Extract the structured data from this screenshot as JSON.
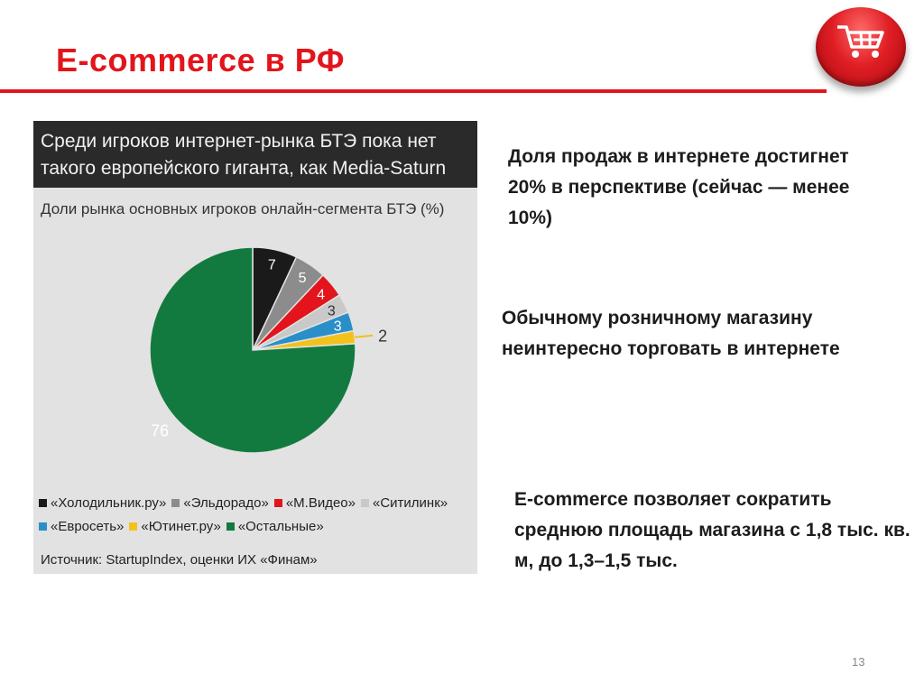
{
  "slide": {
    "title": "E-commerce в РФ",
    "page_number": "13",
    "accent_color": "#e3141b"
  },
  "cart_icon": {
    "name": "shopping-cart-icon"
  },
  "chart_data": {
    "type": "pie",
    "title": "Среди игроков интернет-рынка БТЭ пока нет такого европейского гиганта, как Media-Saturn",
    "title_lines": [
      "Среди игроков интернет-рынка БТЭ пока нет",
      "такого европейского гиганта, как Media-Saturn"
    ],
    "subtitle": "Доли рынка основных игроков онлайн-сегмента БТЭ (%)",
    "source": "Источник: StartupIndex, оценки ИХ «Финам»",
    "slices": [
      {
        "label": "«Холодильник.ру»",
        "value": 7,
        "color": "#1a1a1a"
      },
      {
        "label": "«Эльдорадо»",
        "value": 5,
        "color": "#8c8c8c"
      },
      {
        "label": "«М.Видео»",
        "value": 4,
        "color": "#e3141b"
      },
      {
        "label": "«Ситилинк»",
        "value": 3,
        "color": "#c9c9c9"
      },
      {
        "label": "«Евросеть»",
        "value": 3,
        "color": "#2a8fc9"
      },
      {
        "label": "«Ютинет.ру»",
        "value": 2,
        "color": "#f2c21b"
      },
      {
        "label": "«Остальные»",
        "value": 76,
        "color": "#137a3f"
      }
    ],
    "legend_rows": [
      [
        0,
        1,
        2,
        3
      ],
      [
        4,
        5,
        6
      ]
    ]
  },
  "text_blocks": [
    "Доля продаж в интернете достигнет 20% в перспективе (сейчас — менее 10%)",
    "Обычному розничному магазину неинтересно торговать в интернете",
    "E-commerce позволяет сократить среднюю площадь магазина с 1,8 тыс. кв. м, до 1,3–1,5 тыс."
  ]
}
